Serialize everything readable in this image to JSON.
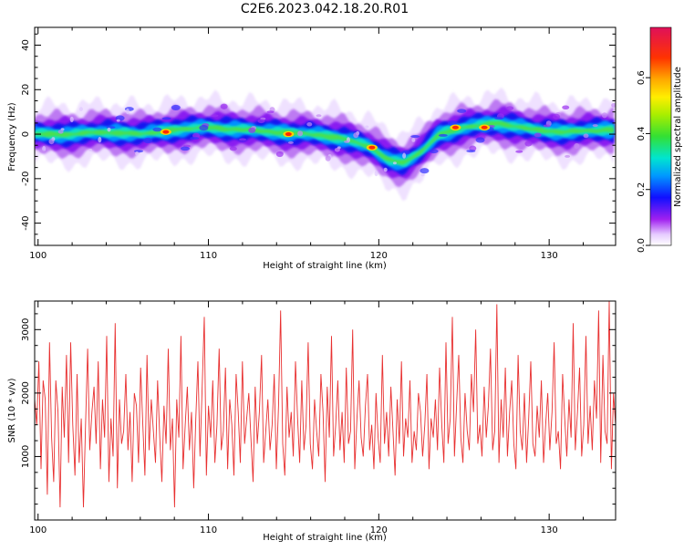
{
  "title": "C2E6.2023.042.18.20.R01",
  "colors": {
    "snr_line": "#e83030",
    "axis": "#000000"
  },
  "chart_data": [
    {
      "type": "heatmap",
      "xlabel": "Height of straight line (km)",
      "ylabel": "Frequency (Hz)",
      "xlim": [
        99.8,
        133.9
      ],
      "ylim": [
        -50,
        48
      ],
      "x_ticks": [
        100,
        110,
        120,
        130
      ],
      "y_ticks": [
        -40,
        -20,
        0,
        20,
        40
      ],
      "colorbar": {
        "label": "Normalized spectral amplitude",
        "range": [
          0,
          0.78
        ],
        "ticks": [
          0.0,
          0.2,
          0.4,
          0.6
        ]
      },
      "ridge_frequency": [
        {
          "x": 100.5,
          "y": 0
        },
        {
          "x": 102,
          "y": 0
        },
        {
          "x": 104,
          "y": 1
        },
        {
          "x": 106,
          "y": 0
        },
        {
          "x": 108,
          "y": 2
        },
        {
          "x": 110,
          "y": 3
        },
        {
          "x": 112,
          "y": 2
        },
        {
          "x": 114,
          "y": 1
        },
        {
          "x": 116,
          "y": 0
        },
        {
          "x": 118,
          "y": -2
        },
        {
          "x": 119.5,
          "y": -6
        },
        {
          "x": 120.5,
          "y": -11
        },
        {
          "x": 121.5,
          "y": -13
        },
        {
          "x": 122.5,
          "y": -8
        },
        {
          "x": 123.5,
          "y": 0
        },
        {
          "x": 125,
          "y": 3
        },
        {
          "x": 127,
          "y": 5
        },
        {
          "x": 129,
          "y": 2
        },
        {
          "x": 131,
          "y": 1
        },
        {
          "x": 133.5,
          "y": 2
        }
      ],
      "peaks": [
        {
          "x": 107.5,
          "y": 1,
          "amplitude": 0.75
        },
        {
          "x": 114.7,
          "y": 0,
          "amplitude": 0.7
        },
        {
          "x": 119.6,
          "y": -6,
          "amplitude": 0.72
        },
        {
          "x": 124.5,
          "y": 3,
          "amplitude": 0.62
        },
        {
          "x": 126.2,
          "y": 3,
          "amplitude": 0.66
        }
      ]
    },
    {
      "type": "line",
      "xlabel": "Height of straight line (km)",
      "ylabel": "SNR (10 * v/v)",
      "xlim": [
        99.8,
        133.9
      ],
      "ylim": [
        0,
        3450
      ],
      "x_ticks": [
        100,
        110,
        120,
        130
      ],
      "y_ticks": [
        1000,
        2000,
        3000
      ],
      "series": [
        {
          "x_start": 99.8,
          "x_end": 133.9,
          "values": [
            1900,
            1500,
            2500,
            800,
            2200,
            1900,
            400,
            2800,
            1300,
            600,
            2200,
            1700,
            200,
            2100,
            1300,
            2600,
            900,
            2800,
            1500,
            700,
            2300,
            900,
            1600,
            200,
            1500,
            2700,
            1100,
            1700,
            2100,
            1200,
            2500,
            800,
            1900,
            1300,
            2900,
            600,
            1600,
            1000,
            3100,
            500,
            1900,
            1200,
            1400,
            2300,
            1100,
            1700,
            600,
            2000,
            1800,
            900,
            2400,
            1500,
            700,
            2600,
            1100,
            1900,
            1400,
            900,
            2200,
            1300,
            600,
            1800,
            1200,
            2700,
            1100,
            1600,
            200,
            1900,
            1300,
            2900,
            800,
            1500,
            2100,
            1100,
            1700,
            500,
            1600,
            2500,
            1000,
            2100,
            3200,
            700,
            1800,
            1300,
            2200,
            900,
            1500,
            2700,
            1100,
            1400,
            2400,
            800,
            1900,
            1500,
            700,
            2300,
            1700,
            900,
            2500,
            1200,
            1600,
            2000,
            1300,
            600,
            2100,
            1200,
            1700,
            2600,
            900,
            1400,
            1900,
            1100,
            1500,
            2300,
            800,
            1800,
            3300,
            1200,
            700,
            2100,
            1300,
            1700,
            1000,
            2500,
            1600,
            900,
            2200,
            1100,
            1500,
            2800,
            1200,
            800,
            1900,
            1400,
            1000,
            2300,
            1700,
            600,
            2100,
            1300,
            2900,
            1000,
            1500,
            2200,
            1100,
            1700,
            900,
            2400,
            1200,
            1400,
            3000,
            800,
            1600,
            2200,
            1300,
            1000,
            1800,
            2300,
            1100,
            1500,
            800,
            2000,
            1300,
            900,
            2600,
            1200,
            1700,
            1000,
            2100,
            1400,
            700,
            1900,
            1200,
            2500,
            1000,
            1600,
            1300,
            2200,
            900,
            1400,
            1100,
            2000,
            1700,
            1000,
            1500,
            2300,
            800,
            1600,
            1300,
            1900,
            1100,
            2400,
            1500,
            900,
            2800,
            1200,
            1600,
            3200,
            1000,
            1800,
            2600,
            1300,
            900,
            2000,
            1400,
            1100,
            2300,
            1700,
            3000,
            1200,
            1500,
            1000,
            2100,
            1300,
            1800,
            2700,
            1100,
            1400,
            3400,
            900,
            1900,
            1300,
            2400,
            1000,
            1700,
            2200,
            1200,
            800,
            2600,
            1400,
            1100,
            2000,
            900,
            1600,
            2500,
            1200,
            1000,
            1800,
            1300,
            2200,
            900,
            1500,
            2000,
            1100,
            1700,
            2800,
            1200,
            1400,
            800,
            2300,
            1600,
            1000,
            1900,
            1300,
            3100,
            1100,
            1700,
            2400,
            1000,
            1500,
            2900,
            1200,
            1800,
            1100,
            2200,
            1600,
            3300,
            900,
            2600,
            1400,
            1200,
            3450,
            800,
            2000,
            1500
          ]
        }
      ]
    }
  ]
}
